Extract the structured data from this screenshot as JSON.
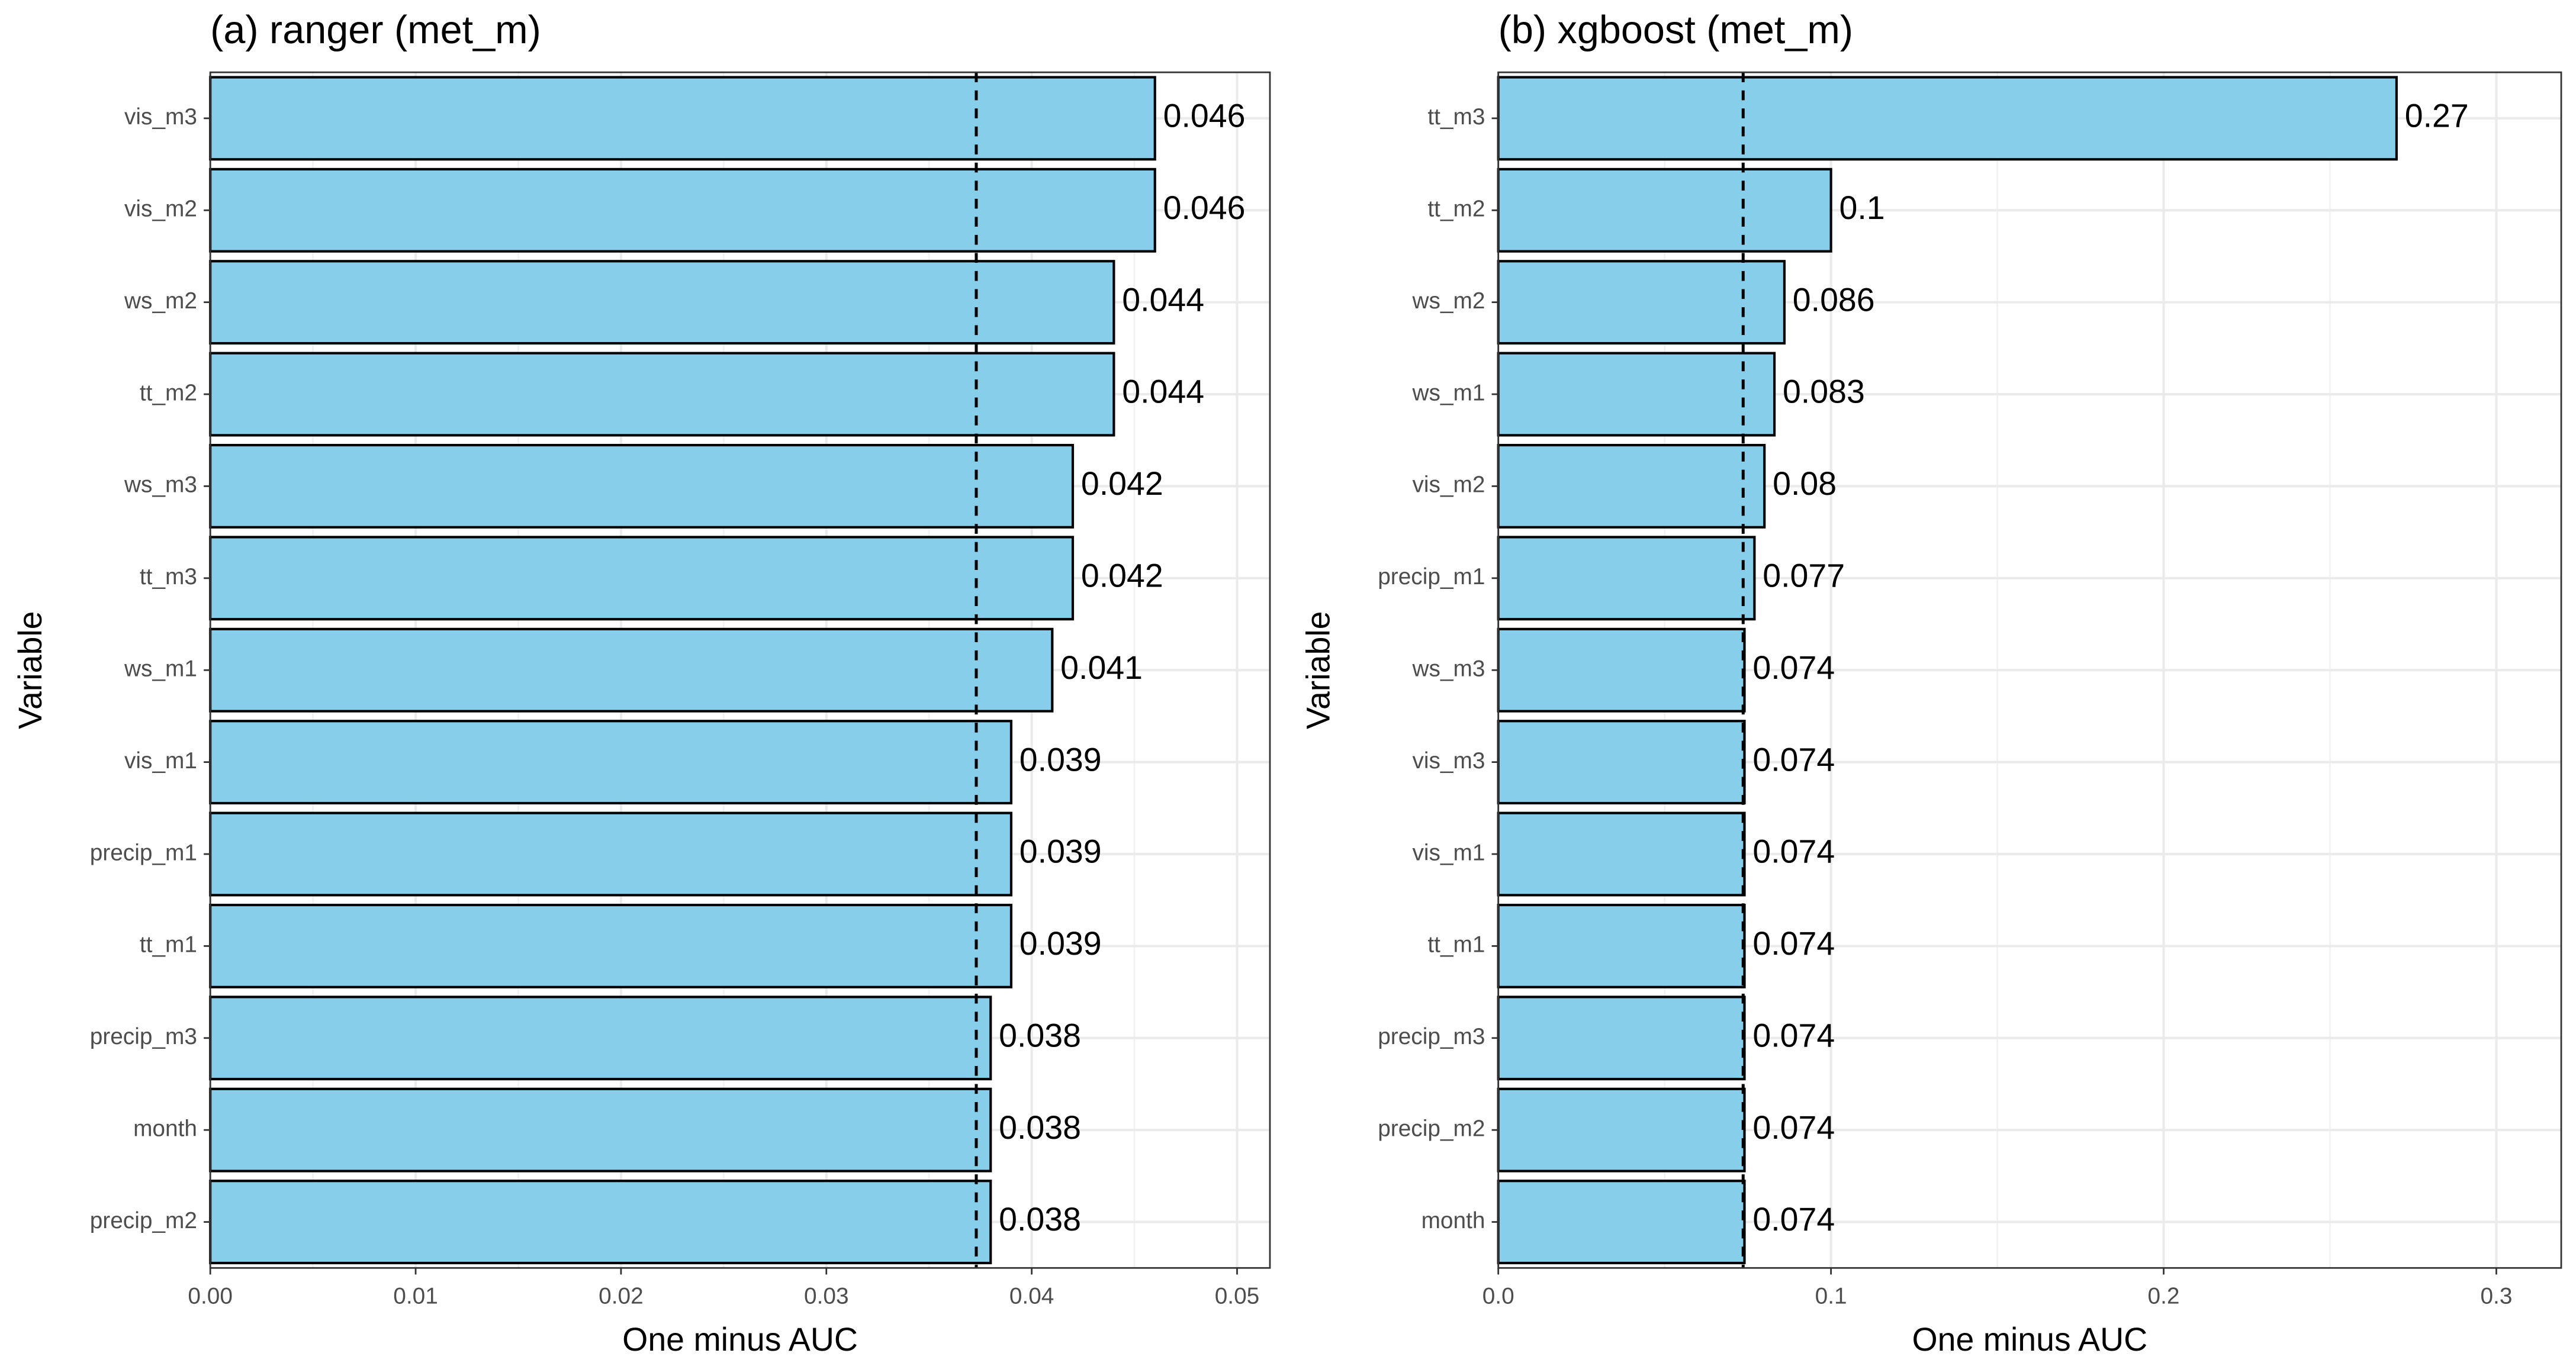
{
  "chart_data": [
    {
      "type": "barh",
      "title": "(a) ranger (met_m)",
      "xlabel": "One minus AUC",
      "ylabel": "Variable",
      "categories": [
        "vis_m3",
        "vis_m2",
        "ws_m2",
        "tt_m2",
        "ws_m3",
        "tt_m3",
        "ws_m1",
        "vis_m1",
        "precip_m1",
        "tt_m1",
        "precip_m3",
        "month",
        "precip_m2"
      ],
      "values": [
        0.046,
        0.046,
        0.044,
        0.044,
        0.042,
        0.042,
        0.041,
        0.039,
        0.039,
        0.039,
        0.038,
        0.038,
        0.038
      ],
      "color": "#87ceeb",
      "xlim": [
        0,
        0.0516
      ],
      "xticks": [
        {
          "value": 0,
          "label": "0.00"
        },
        0.01,
        0.02,
        0.03,
        0.04,
        0.05
      ],
      "xminor": [
        0.005,
        0.015,
        0.025,
        0.035,
        0.045
      ],
      "reference": 0.0373,
      "grid": true
    },
    {
      "type": "barh",
      "title": "(b) xgboost (met_m)",
      "xlabel": "One minus AUC",
      "ylabel": "Variable",
      "categories": [
        "tt_m3",
        "tt_m2",
        "ws_m2",
        "ws_m1",
        "vis_m2",
        "precip_m1",
        "ws_m3",
        "vis_m3",
        "vis_m1",
        "tt_m1",
        "precip_m3",
        "precip_m2",
        "month"
      ],
      "values": [
        0.27,
        0.1,
        0.086,
        0.083,
        0.08,
        0.077,
        0.074,
        0.074,
        0.074,
        0.074,
        0.074,
        0.074,
        0.074
      ],
      "color": "#87ceeb",
      "xlim": [
        0,
        0.3195
      ],
      "xticks": [
        {
          "value": 0,
          "label": "0.0"
        },
        0.1,
        0.2,
        0.3
      ],
      "xminor": [
        0.05,
        0.15,
        0.25
      ],
      "reference": 0.0736,
      "grid": true
    }
  ]
}
